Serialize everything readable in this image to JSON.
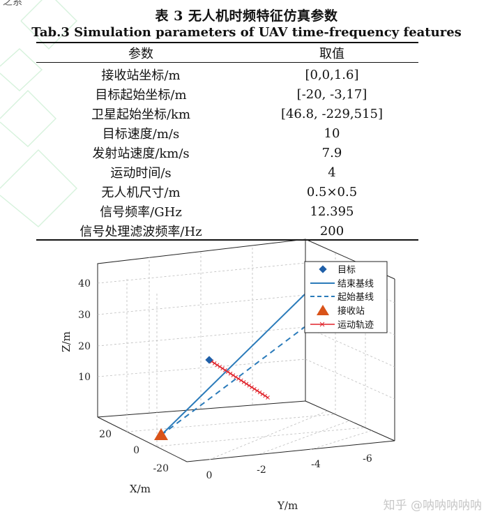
{
  "header": {
    "partial_text": "之系"
  },
  "table": {
    "caption_cn": "表 3 无人机时频特征仿真参数",
    "caption_en": "Tab.3 Simulation parameters of UAV time-frequency features",
    "headers": [
      "参数",
      "取值"
    ],
    "rows": [
      [
        "接收站坐标/m",
        "[0,0,1.6]"
      ],
      [
        "目标起始坐标/m",
        "[-20, -3,17]"
      ],
      [
        "卫星起始坐标/km",
        "[46.8, -229,515]"
      ],
      [
        "目标速度/m/s",
        "10"
      ],
      [
        "发射站速度/km/s",
        "7.9"
      ],
      [
        "运动时间/s",
        "4"
      ],
      [
        "无人机尺寸/m",
        "0.5×0.5"
      ],
      [
        "信号频率/GHz",
        "12.395"
      ],
      [
        "信号处理滤波频率/Hz",
        "200"
      ]
    ]
  },
  "chart_data": {
    "type": "scatter",
    "title": "",
    "xlabel": "X/m",
    "ylabel": "Y/m",
    "zlabel": "Z/m",
    "x_ticks": [
      "20",
      "0",
      "-20"
    ],
    "y_ticks": [
      "0",
      "-2",
      "-4",
      "-6"
    ],
    "z_ticks": [
      "10",
      "20",
      "30",
      "40"
    ],
    "xlim": [
      -30,
      30
    ],
    "ylim": [
      -7,
      1
    ],
    "zlim": [
      0,
      45
    ],
    "grid": true,
    "legend_position": "top-right",
    "legend": [
      "目标",
      "结束基线",
      "起始基线",
      "接收站",
      "运动轨迹"
    ],
    "colors": {
      "target": "#1f5fa8",
      "end_baseline": "#2b7bba",
      "start_baseline": "#2b7bba",
      "receiver": "#d95319",
      "trajectory": "#e0222a"
    }
  },
  "watermark": {
    "text": "知乎 @呐呐呐呐呐"
  }
}
